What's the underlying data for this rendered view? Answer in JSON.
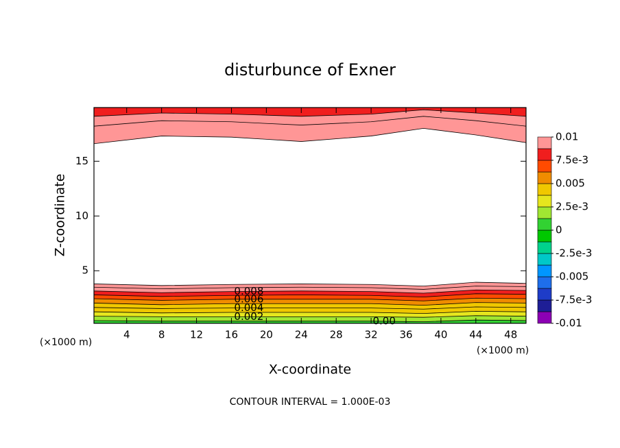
{
  "chart_data": {
    "type": "contour",
    "title": "disturbunce of Exner",
    "x_label": "X-coordinate",
    "y_label": "Z-coordinate",
    "x_unit": "(×1000 m)",
    "y_unit": "(×1000 m)",
    "footer": "CONTOUR INTERVAL = 1.000E-03",
    "xlim": [
      0.25,
      49.75
    ],
    "ylim": [
      0.2,
      19.9
    ],
    "xticks": [
      4,
      8,
      12,
      16,
      20,
      24,
      28,
      32,
      36,
      40,
      44,
      48
    ],
    "yticks": [
      5,
      10,
      15
    ],
    "contour_x": [
      0.25,
      8,
      16,
      24,
      32,
      38,
      44,
      49.75
    ],
    "contours": [
      {
        "level": 0.01,
        "values": [
          3.8,
          3.65,
          3.75,
          3.8,
          3.75,
          3.6,
          3.95,
          3.85
        ]
      },
      {
        "level": 0.009,
        "values": [
          3.5,
          3.35,
          3.45,
          3.5,
          3.45,
          3.3,
          3.6,
          3.55
        ]
      },
      {
        "level": 0.008,
        "label": "0.008",
        "values": [
          3.15,
          3.0,
          3.1,
          3.15,
          3.1,
          2.95,
          3.25,
          3.2
        ]
      },
      {
        "level": 0.007,
        "values": [
          2.8,
          2.65,
          2.75,
          2.8,
          2.75,
          2.6,
          2.9,
          2.85
        ]
      },
      {
        "level": 0.006,
        "label": "0.006",
        "values": [
          2.45,
          2.3,
          2.4,
          2.4,
          2.4,
          2.25,
          2.5,
          2.45
        ]
      },
      {
        "level": 0.005,
        "values": [
          2.05,
          1.9,
          2.0,
          2.0,
          2.0,
          1.85,
          2.1,
          2.05
        ]
      },
      {
        "level": 0.004,
        "label": "0.004",
        "values": [
          1.65,
          1.55,
          1.6,
          1.6,
          1.6,
          1.5,
          1.7,
          1.65
        ]
      },
      {
        "level": 0.003,
        "values": [
          1.25,
          1.15,
          1.2,
          1.2,
          1.2,
          1.1,
          1.3,
          1.25
        ]
      },
      {
        "level": 0.002,
        "label": "0.002",
        "values": [
          0.85,
          0.8,
          0.8,
          0.8,
          0.8,
          0.75,
          0.9,
          0.85
        ]
      },
      {
        "level": 0.001,
        "label": "0.00",
        "values": [
          0.45,
          0.4,
          0.4,
          0.4,
          0.4,
          0.35,
          0.5,
          0.45
        ]
      },
      {
        "level": 0.01,
        "values": [
          16.6,
          17.3,
          17.2,
          16.8,
          17.3,
          18.0,
          17.4,
          16.7
        ]
      },
      {
        "level": 0.009,
        "values": [
          18.2,
          18.7,
          18.6,
          18.3,
          18.6,
          19.1,
          18.7,
          18.2
        ]
      },
      {
        "level": 0.008,
        "values": [
          19.1,
          19.4,
          19.3,
          19.1,
          19.3,
          19.7,
          19.4,
          19.1
        ]
      }
    ],
    "colorbar": {
      "lim": [
        -0.01,
        0.01
      ],
      "ticks": [
        -0.01,
        {
          "value": -0.0075,
          "label": "-7.5e-3"
        },
        -0.005,
        {
          "value": -0.0025,
          "label": "-2.5e-3"
        },
        0,
        {
          "value": 0.0025,
          "label": "2.5e-3"
        },
        0.005,
        {
          "value": 0.0075,
          "label": "7.5e-3"
        },
        0.01
      ],
      "colors": [
        "#8c00b4",
        "#1e1e96",
        "#1e3cc8",
        "#1e6eeb",
        "#0096ff",
        "#00c8c8",
        "#00d28c",
        "#00c800",
        "#32d232",
        "#a0e632",
        "#e6e61e",
        "#f0c800",
        "#f08c00",
        "#ff4b00",
        "#f01e1e",
        "#ff9696"
      ]
    }
  }
}
